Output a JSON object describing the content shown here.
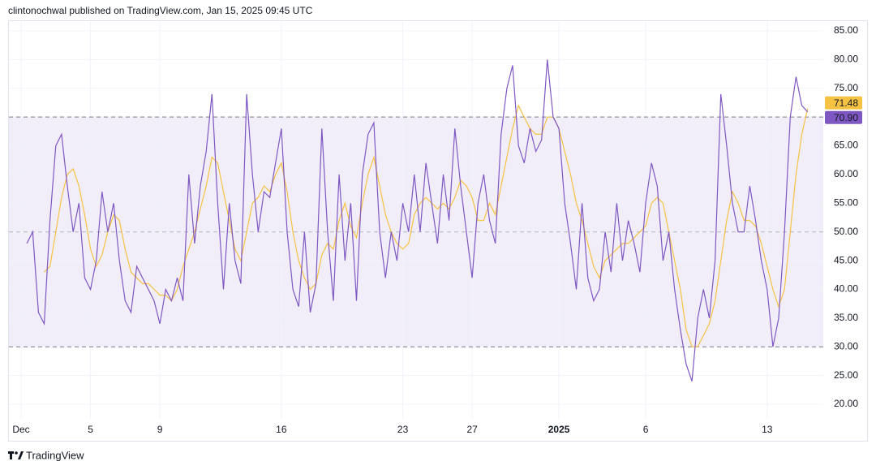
{
  "header": {
    "text": "clintonochwal published on TradingView.com, Jan 15, 2025 09:45 UTC"
  },
  "footer": {
    "brand": "TradingView"
  },
  "chart_data": {
    "type": "line",
    "categories": [
      "Dec",
      null,
      null,
      null,
      null,
      null,
      null,
      null,
      null,
      null,
      null,
      null,
      "5",
      null,
      null,
      null,
      null,
      null,
      null,
      null,
      null,
      null,
      null,
      null,
      "9",
      null,
      null,
      null,
      null,
      null,
      null,
      null,
      null,
      null,
      null,
      null,
      null,
      null,
      null,
      null,
      null,
      null,
      null,
      null,
      null,
      "16",
      null,
      null,
      null,
      null,
      null,
      null,
      null,
      null,
      null,
      null,
      null,
      null,
      null,
      null,
      null,
      null,
      null,
      null,
      null,
      null,
      "23",
      null,
      null,
      null,
      null,
      null,
      null,
      null,
      null,
      null,
      null,
      null,
      "27",
      null,
      null,
      null,
      null,
      null,
      null,
      null,
      null,
      null,
      null,
      null,
      null,
      null,
      null,
      "2025",
      null,
      null,
      null,
      null,
      null,
      null,
      null,
      null,
      null,
      null,
      null,
      null,
      null,
      null,
      "6",
      null,
      null,
      null,
      null,
      null,
      null,
      null,
      null,
      null,
      null,
      null,
      null,
      null,
      null,
      null,
      null,
      null,
      null,
      null,
      null,
      "13",
      null,
      null,
      null,
      null,
      null,
      null,
      null
    ],
    "series": [
      {
        "color": "#7e57c2",
        "values": [
          null,
          48,
          50,
          36,
          34,
          52,
          65,
          67,
          58,
          50,
          55,
          42,
          40,
          45,
          57,
          50,
          55,
          45,
          38,
          36,
          44,
          42,
          40,
          38,
          34,
          40,
          38,
          42,
          38,
          60,
          48,
          58,
          64,
          74,
          55,
          40,
          55,
          45,
          41,
          74,
          60,
          50,
          57,
          56,
          62,
          68,
          50,
          40,
          37,
          50,
          36,
          41,
          68,
          50,
          38,
          60,
          45,
          55,
          38,
          60,
          67,
          69,
          50,
          42,
          50,
          45,
          55,
          50,
          60,
          50,
          62,
          55,
          48,
          60,
          52,
          68,
          58,
          50,
          42,
          55,
          60,
          52,
          48,
          67,
          75,
          79,
          65,
          62,
          68,
          64,
          66,
          80,
          70,
          68,
          55,
          48,
          40,
          55,
          42,
          38,
          40,
          50,
          43,
          55,
          45,
          52,
          48,
          43,
          55,
          62,
          58,
          45,
          50,
          40,
          33,
          27,
          24,
          35,
          40,
          35,
          45,
          74,
          65,
          55,
          50,
          50,
          58,
          52,
          45,
          40,
          30,
          35,
          50,
          70,
          77,
          72,
          70.9
        ],
        "value_labels": [
          null,
          null,
          null,
          null,
          null,
          null,
          null,
          null,
          null,
          null,
          null,
          null,
          null,
          null,
          null,
          null,
          null,
          null,
          null,
          null,
          null,
          null,
          null,
          null,
          null,
          null,
          null,
          null,
          null,
          null,
          null,
          null,
          null,
          null,
          null,
          null,
          null,
          null,
          null,
          null,
          null,
          null,
          null,
          null,
          null,
          null,
          null,
          null,
          null,
          null,
          null,
          null,
          null,
          null,
          null,
          null,
          null,
          null,
          null,
          null,
          null,
          null,
          null,
          null,
          null,
          null,
          null,
          null,
          null,
          null,
          null,
          null,
          null,
          null,
          null,
          null,
          null,
          null,
          null,
          null,
          null,
          null,
          null,
          null,
          null,
          null,
          null,
          null,
          null,
          null,
          null,
          null,
          null,
          null,
          null,
          null,
          null,
          null,
          null,
          null,
          null,
          null,
          null,
          null,
          null,
          null,
          null,
          null,
          null,
          null,
          null,
          null,
          null,
          null,
          null,
          null,
          null,
          null,
          null,
          null,
          null,
          null,
          null,
          null,
          null,
          null,
          null,
          null,
          null,
          null,
          null,
          null,
          null,
          null,
          null,
          null,
          "70.90"
        ]
      },
      {
        "color": "#f5c242",
        "values": [
          null,
          null,
          null,
          null,
          43,
          44,
          50,
          56,
          60,
          61,
          58,
          53,
          47,
          44,
          46,
          50,
          53,
          52,
          47,
          43,
          42,
          41,
          41,
          40,
          39,
          39,
          38,
          40,
          44,
          47,
          50,
          54,
          58,
          63,
          62,
          57,
          52,
          47,
          45,
          50,
          55,
          56,
          58,
          57,
          60,
          62,
          57,
          50,
          45,
          42,
          40,
          41,
          46,
          48,
          47,
          52,
          55,
          51,
          49,
          55,
          60,
          63,
          58,
          53,
          50,
          48,
          47,
          48,
          53,
          55,
          56,
          55,
          54,
          55,
          54,
          56,
          59,
          58,
          56,
          52,
          52,
          55,
          53,
          58,
          63,
          68,
          72,
          70,
          68,
          67,
          67,
          70,
          70,
          68,
          64,
          60,
          55,
          52,
          48,
          44,
          42,
          45,
          46,
          47,
          48,
          48,
          49,
          50,
          51,
          55,
          56,
          55,
          50,
          45,
          40,
          33,
          30,
          30,
          32,
          34,
          38,
          45,
          52,
          57,
          55,
          52,
          52,
          51,
          48,
          44,
          40,
          37,
          40,
          50,
          60,
          67,
          71.48
        ]
      }
    ],
    "ylim": [
      17.6,
      86.84
    ],
    "yticks": [
      {
        "value": 20,
        "label": "20.00"
      },
      {
        "value": 25,
        "label": "25.00"
      },
      {
        "value": 30,
        "label": "30.00"
      },
      {
        "value": 35,
        "label": "35.00"
      },
      {
        "value": 40,
        "label": "40.00"
      },
      {
        "value": 45,
        "label": "45.00"
      },
      {
        "value": 50,
        "label": "50.00"
      },
      {
        "value": 55,
        "label": "55.00"
      },
      {
        "value": 60,
        "label": "60.00"
      },
      {
        "value": 65,
        "label": "65.00"
      },
      {
        "value": 70,
        "label": "70.00"
      },
      {
        "value": 75,
        "label": "75.00"
      },
      {
        "value": 80,
        "label": "80.00"
      },
      {
        "value": 85,
        "label": "85.00"
      }
    ],
    "bands": {
      "upper": 70,
      "middle": 50,
      "lower": 30
    },
    "grid": true
  }
}
